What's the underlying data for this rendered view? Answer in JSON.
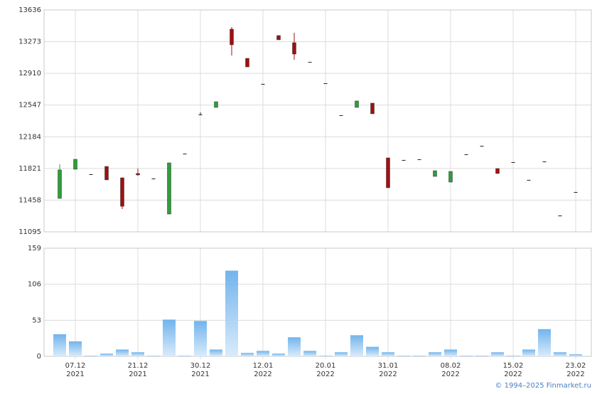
{
  "chart_data": {
    "type": "candlestick",
    "categories": [
      null,
      "07.12",
      null,
      null,
      null,
      "21.12",
      null,
      null,
      null,
      "30.12",
      null,
      null,
      null,
      "12.01",
      null,
      null,
      null,
      "20.01",
      null,
      null,
      null,
      "31.01",
      null,
      null,
      null,
      "08.02",
      null,
      null,
      null,
      "15.02",
      null,
      null,
      null,
      "23.02"
    ],
    "category_years": [
      null,
      "2021",
      null,
      null,
      null,
      "2021",
      null,
      null,
      null,
      "2021",
      null,
      null,
      null,
      "2022",
      null,
      null,
      null,
      "2022",
      null,
      null,
      null,
      "2022",
      null,
      null,
      null,
      "2022",
      null,
      null,
      null,
      "2022",
      null,
      null,
      null,
      "2022"
    ],
    "open": [
      11478,
      11812,
      11755,
      11844,
      11714,
      11763,
      11706,
      11299,
      11991,
      12439,
      12520,
      13416,
      13082,
      12789,
      13343,
      13261,
      13041,
      12797,
      12431,
      12520,
      12569,
      11942,
      11918,
      11926,
      11730,
      11665,
      11983,
      12080,
      11820,
      11893,
      11690,
      11901,
      11282,
      11551
    ],
    "high": [
      11869,
      11926,
      11755,
      11844,
      11714,
      11820,
      11706,
      11885,
      11991,
      12463,
      12585,
      13440,
      13082,
      12789,
      13343,
      13375,
      13041,
      12797,
      12431,
      12594,
      12569,
      11942,
      11918,
      11926,
      11795,
      11787,
      11983,
      12080,
      11820,
      11893,
      11690,
      11901,
      11282,
      11551
    ],
    "low": [
      11478,
      11812,
      11755,
      11690,
      11356,
      11738,
      11706,
      11299,
      11991,
      12439,
      12520,
      13115,
      12984,
      12789,
      13294,
      13066,
      13041,
      12797,
      12431,
      12520,
      12447,
      11600,
      11918,
      11926,
      11730,
      11665,
      11983,
      12080,
      11763,
      11893,
      11690,
      11901,
      11282,
      11551
    ],
    "close": [
      11804,
      11926,
      11755,
      11690,
      11388,
      11747,
      11706,
      11885,
      11991,
      12439,
      12585,
      13237,
      12984,
      12789,
      13294,
      13131,
      13041,
      12797,
      12431,
      12594,
      12447,
      11600,
      11918,
      11926,
      11795,
      11787,
      11983,
      12080,
      11763,
      11893,
      11690,
      11901,
      11282,
      11551
    ],
    "up_color": "#2e9e3a",
    "down_color": "#a01010",
    "flat_color": "#222222",
    "ylim": [
      11095,
      13636
    ],
    "yticks": [
      11095,
      11458,
      11821,
      12184,
      12547,
      12910,
      13273,
      13636
    ],
    "volume": [
      32.5,
      22,
      1,
      4,
      10,
      6,
      1,
      54,
      1,
      52,
      10,
      126,
      5,
      8,
      4,
      28,
      8,
      1,
      6,
      31,
      14,
      6,
      1,
      1,
      6,
      10,
      1,
      1,
      6,
      1,
      10,
      40,
      6,
      3
    ],
    "volume_ylim": [
      0,
      159
    ],
    "volume_yticks": [
      0,
      53,
      106,
      159
    ],
    "grid": true,
    "footer": "© 1994–2025 Finmarket.ru"
  }
}
